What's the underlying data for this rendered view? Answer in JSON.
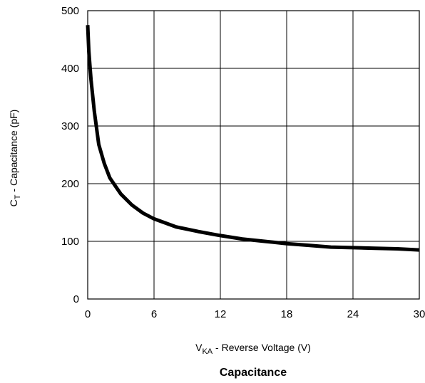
{
  "chart_data": {
    "type": "line",
    "title": "Capacitance",
    "xlabel": {
      "main": "V",
      "sub": "KA",
      "rest": " - Reverse Voltage (V)"
    },
    "ylabel": {
      "main": "C",
      "sub": "T",
      "rest": " - Capacitance (pF)"
    },
    "xlim": [
      0,
      30
    ],
    "ylim": [
      0,
      500
    ],
    "x_ticks": [
      "0",
      "6",
      "12",
      "18",
      "24",
      "30"
    ],
    "y_ticks": [
      "0",
      "100",
      "200",
      "300",
      "400",
      "500"
    ],
    "grid": true,
    "series": [
      {
        "x": [
          0,
          0.1,
          0.3,
          0.6,
          1,
          1.5,
          2,
          3,
          4,
          5,
          6,
          8,
          10,
          12,
          14,
          16,
          18,
          20,
          22,
          24,
          26,
          28,
          30
        ],
        "y": [
          475,
          430,
          380,
          325,
          268,
          235,
          210,
          182,
          163,
          149,
          139,
          125,
          117,
          110,
          104,
          100,
          96,
          93,
          90,
          89,
          88,
          87,
          85
        ]
      }
    ]
  }
}
